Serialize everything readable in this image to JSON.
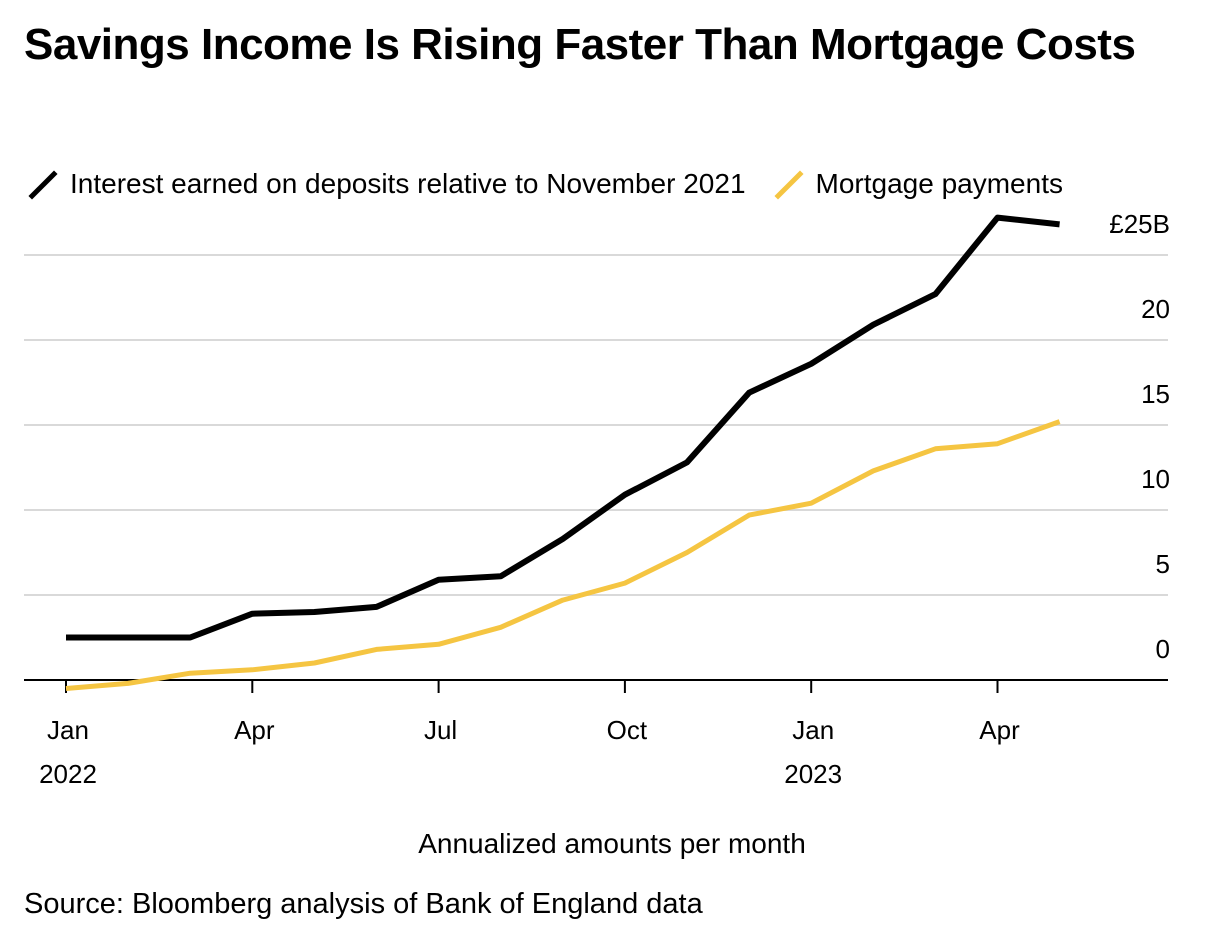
{
  "title": "Savings Income Is Rising Faster Than Mortgage Costs",
  "legend": [
    {
      "label": "Interest earned on deposits relative to November 2021",
      "color": "#000000"
    },
    {
      "label": "Mortgage payments",
      "color": "#F5C542"
    }
  ],
  "subtitle": "Annualized amounts per month",
  "source": "Source: Bloomberg analysis of Bank of England data",
  "chart_data": {
    "type": "line",
    "title": "Savings Income Is Rising Faster Than Mortgage Costs",
    "xlabel": "",
    "ylabel": "",
    "unit_label": "£25B",
    "ylim": [
      -0.5,
      25
    ],
    "y_ticks": [
      {
        "value": 25,
        "label": "£25B"
      },
      {
        "value": 20,
        "label": "20"
      },
      {
        "value": 15,
        "label": "15"
      },
      {
        "value": 10,
        "label": "10"
      },
      {
        "value": 5,
        "label": "5"
      },
      {
        "value": 0,
        "label": "0"
      }
    ],
    "x_ticks": [
      {
        "month": "2022-01",
        "label": "Jan",
        "year": "2022"
      },
      {
        "month": "2022-04",
        "label": "Apr",
        "year": ""
      },
      {
        "month": "2022-07",
        "label": "Jul",
        "year": ""
      },
      {
        "month": "2022-10",
        "label": "Oct",
        "year": ""
      },
      {
        "month": "2023-01",
        "label": "Jan",
        "year": "2023"
      },
      {
        "month": "2023-04",
        "label": "Apr",
        "year": ""
      }
    ],
    "x": [
      "2022-01",
      "2022-02",
      "2022-03",
      "2022-04",
      "2022-05",
      "2022-06",
      "2022-07",
      "2022-08",
      "2022-09",
      "2022-10",
      "2022-11",
      "2022-12",
      "2023-01",
      "2023-02",
      "2023-03",
      "2023-04",
      "2023-05"
    ],
    "series": [
      {
        "name": "Interest earned on deposits relative to November 2021",
        "color": "#000000",
        "values": [
          2.5,
          2.5,
          2.5,
          3.9,
          4.0,
          4.3,
          5.9,
          6.1,
          8.3,
          10.9,
          12.8,
          16.9,
          18.6,
          20.9,
          22.7,
          27.2,
          26.8
        ]
      },
      {
        "name": "Mortgage payments",
        "color": "#F5C542",
        "values": [
          -0.5,
          -0.2,
          0.4,
          0.6,
          1.0,
          1.8,
          2.1,
          3.1,
          4.7,
          5.7,
          7.5,
          9.7,
          10.4,
          12.3,
          13.6,
          13.9,
          15.2
        ]
      }
    ],
    "grid": true,
    "legend_position": "top-left"
  }
}
